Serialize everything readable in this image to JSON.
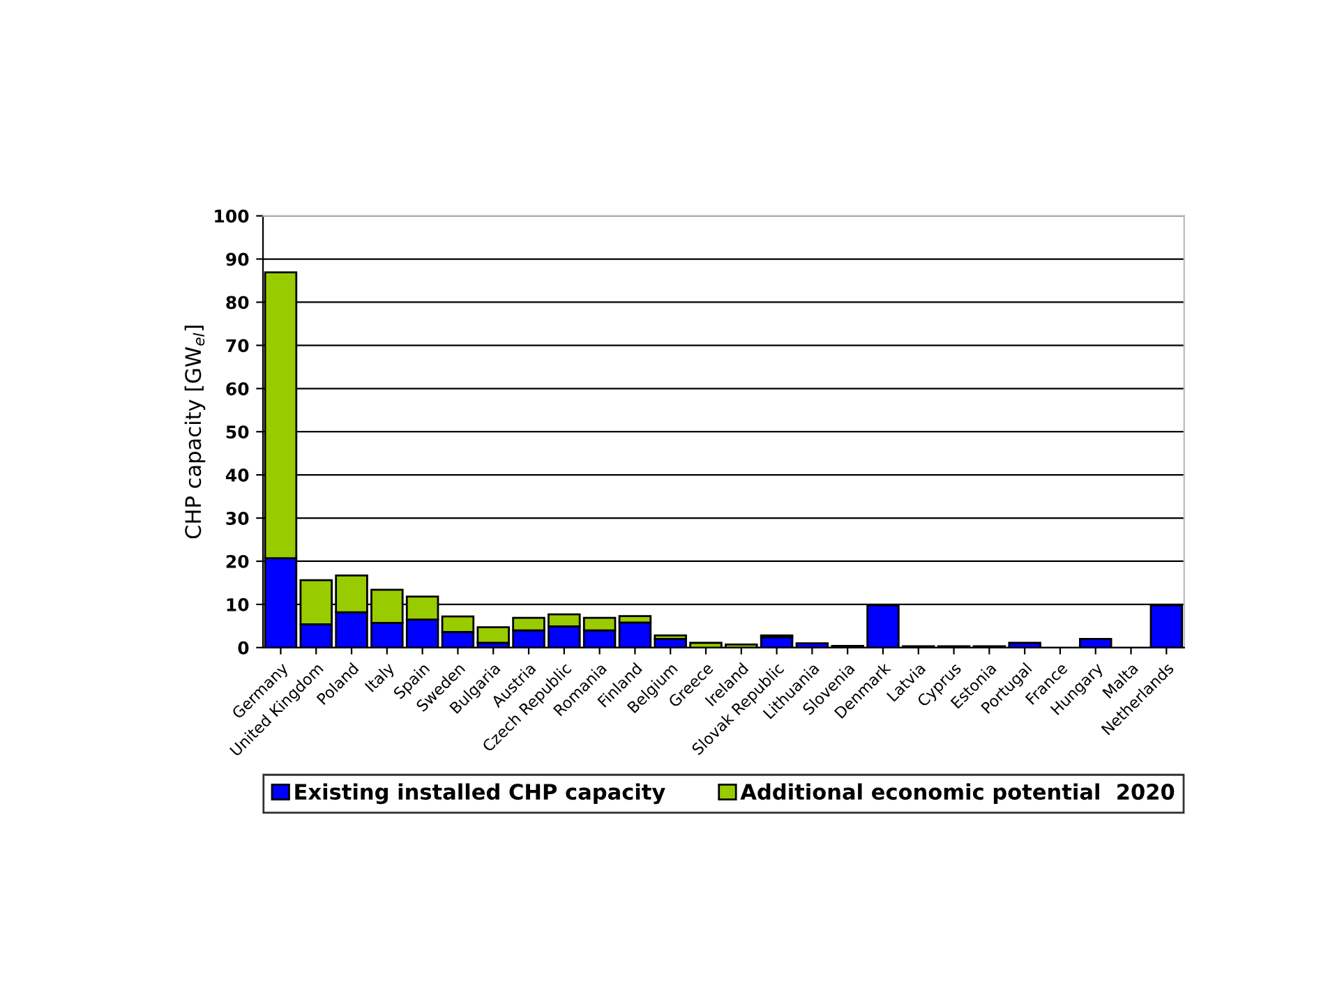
{
  "chart_data": {
    "type": "bar",
    "stacked": true,
    "ylabel": "CHP capacity [GW$_{el}$]",
    "categories": [
      "Germany",
      "United Kingdom",
      "Poland",
      "Italy",
      "Spain",
      "Sweden",
      "Bulgaria",
      "Austria",
      "Czech Republic",
      "Romania",
      "Finland",
      "Belgium",
      "Greece",
      "Ireland",
      "Slovak Republic",
      "Lithuania",
      "Slovenia",
      "Denmark",
      "Latvia",
      "Cyprus",
      "Estonia",
      "Portugal",
      "France",
      "Hungary",
      "Malta",
      "Netherlands"
    ],
    "series": [
      {
        "name": "Existing installed CHP capacity",
        "color": "#0000ff",
        "values": [
          20.7,
          5.4,
          8.2,
          5.7,
          6.5,
          3.6,
          1.1,
          4.0,
          4.9,
          4.0,
          5.8,
          2.0,
          null,
          null,
          2.4,
          1.0,
          0.4,
          9.8,
          0.3,
          0.3,
          0.3,
          1.1,
          null,
          2.0,
          null,
          9.8
        ]
      },
      {
        "name": "Additional economic potential  2020",
        "color": "#99cc00",
        "values": [
          66.2,
          10.2,
          8.5,
          7.7,
          5.3,
          3.6,
          3.6,
          2.9,
          2.8,
          2.9,
          1.5,
          0.8,
          1.1,
          0.7,
          0.4,
          null,
          null,
          null,
          null,
          null,
          null,
          null,
          null,
          null,
          null,
          null
        ]
      }
    ],
    "ylim": [
      0,
      100
    ],
    "yticks": [
      0,
      10,
      20,
      30,
      40,
      50,
      60,
      70,
      80,
      90,
      100
    ],
    "grid": "y",
    "legend": "bottom"
  }
}
